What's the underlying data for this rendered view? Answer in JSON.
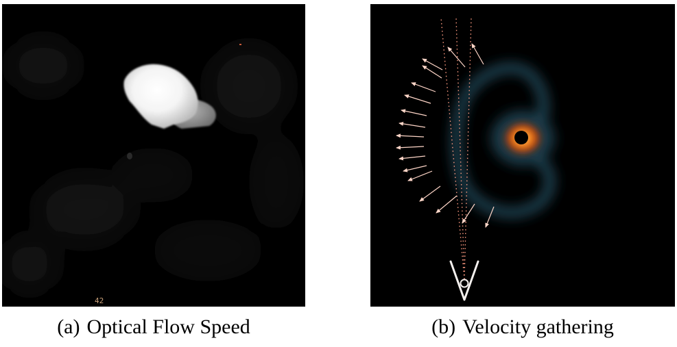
{
  "figure": {
    "panel_a": {
      "tag": "(a)",
      "caption": "Optical Flow Speed",
      "frame_label": "42",
      "colors": {
        "background": "#000000",
        "blob": "#ffffff",
        "label": "#c9a07a"
      }
    },
    "panel_b": {
      "tag": "(b)",
      "caption": "Velocity gathering",
      "colors": {
        "background": "#000000",
        "arrows": "#ffd6c8",
        "glow": "#234a5e",
        "hot_core": "#ff7a10",
        "dotted_lines": "#ff9a80",
        "camera": "#f4f0ee"
      }
    }
  }
}
